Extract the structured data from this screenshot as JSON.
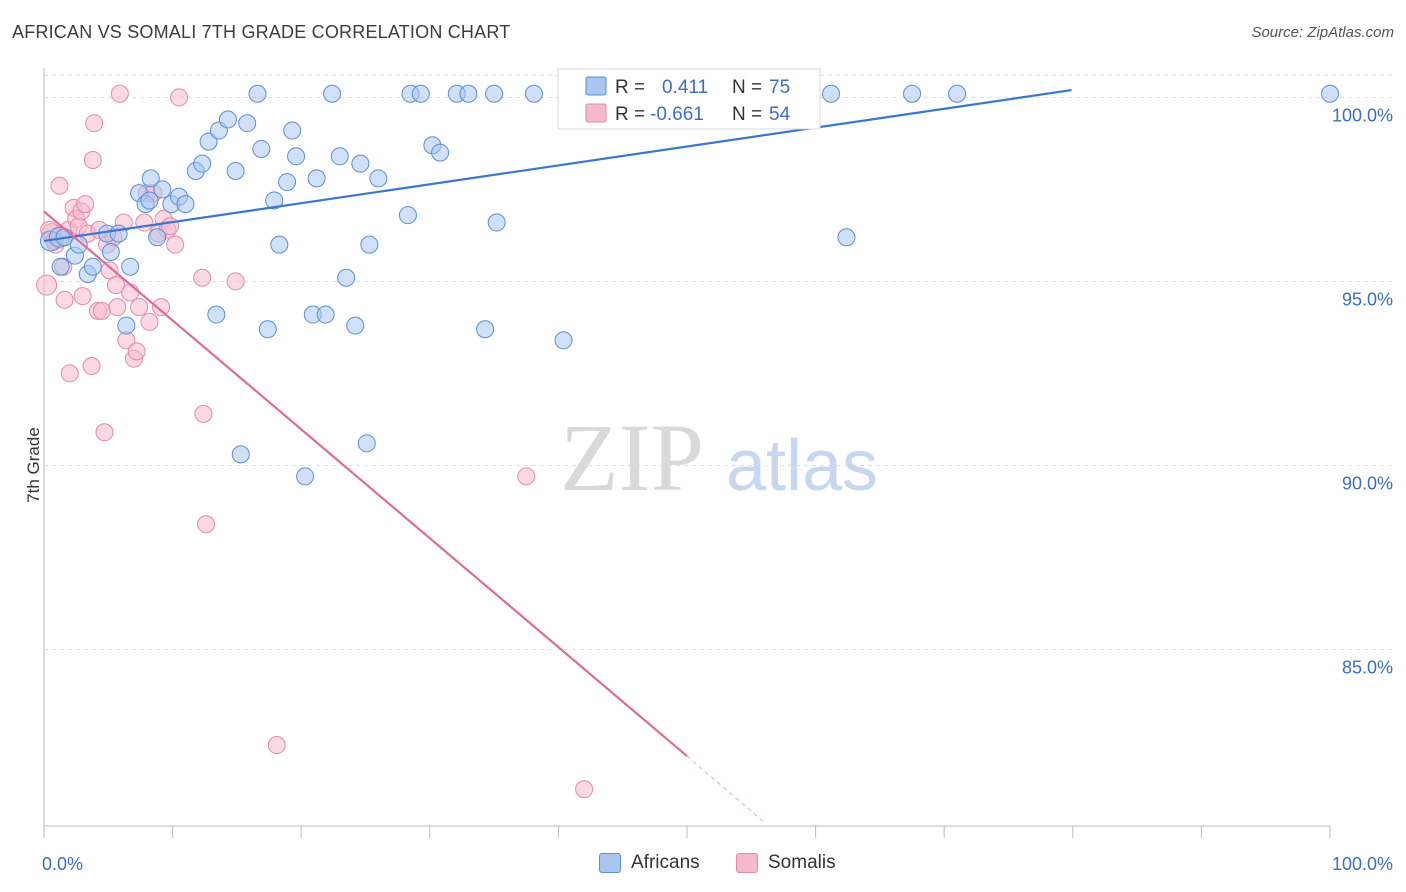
{
  "title": "AFRICAN VS SOMALI 7TH GRADE CORRELATION CHART",
  "source": "Source: ZipAtlas.com",
  "watermark": {
    "zip": "ZIP",
    "atlas": "atlas"
  },
  "colors": {
    "blue_fill": "#a9c6ee",
    "blue_stroke": "#5b8fd6",
    "blue_line": "#3a78cf",
    "pink_fill": "#f5b9cd",
    "pink_stroke": "#e48aaa",
    "pink_line": "#e06b98",
    "tick_label": "#3b6fc7",
    "grid": "#dcdcdc"
  },
  "legend": {
    "rows": [
      {
        "r_label": "R =",
        "r_value": "0.411",
        "n_label": "N =",
        "n_value": "75",
        "color": "blue"
      },
      {
        "r_label": "R =",
        "r_value": "-0.661",
        "n_label": "N =",
        "n_value": "54",
        "color": "pink"
      }
    ]
  },
  "bottom_legend": {
    "items": [
      {
        "label": "Africans",
        "color": "blue"
      },
      {
        "label": "Somalis",
        "color": "pink"
      }
    ]
  },
  "chart_data": {
    "type": "scatter",
    "title": "AFRICAN VS SOMALI 7TH GRADE CORRELATION CHART",
    "xlabel": "",
    "ylabel": "7th Grade",
    "xlim": [
      0,
      100
    ],
    "ylim": [
      80.2,
      100.8
    ],
    "x_tick_labels": [
      "0.0%",
      "100.0%"
    ],
    "y_ticks": [
      85,
      90,
      95,
      100
    ],
    "y_tick_labels": [
      "85.0%",
      "90.0%",
      "95.0%",
      "100.0%"
    ],
    "grid": true,
    "legend_position": "top-center",
    "series": [
      {
        "name": "Africans",
        "color": "#a9c6ee",
        "trend": {
          "x": [
            0,
            79.9
          ],
          "y": [
            96.1,
            100.2
          ]
        },
        "points": [
          [
            0.5,
            96.1
          ],
          [
            1.2,
            96.2
          ],
          [
            1.3,
            95.4
          ],
          [
            1.6,
            96.2
          ],
          [
            2.4,
            95.7
          ],
          [
            2.7,
            96.0
          ],
          [
            3.4,
            95.2
          ],
          [
            3.8,
            95.4
          ],
          [
            4.9,
            96.3
          ],
          [
            5.2,
            95.8
          ],
          [
            5.8,
            96.3
          ],
          [
            6.4,
            93.8
          ],
          [
            6.7,
            95.4
          ],
          [
            7.4,
            97.4
          ],
          [
            7.9,
            97.1
          ],
          [
            8.2,
            97.2
          ],
          [
            8.3,
            97.8
          ],
          [
            8.8,
            96.2
          ],
          [
            9.2,
            97.5
          ],
          [
            9.9,
            97.1
          ],
          [
            10.5,
            97.3
          ],
          [
            11.0,
            97.1
          ],
          [
            11.8,
            98.0
          ],
          [
            12.3,
            98.2
          ],
          [
            12.8,
            98.8
          ],
          [
            13.4,
            94.1
          ],
          [
            13.6,
            99.1
          ],
          [
            14.3,
            99.4
          ],
          [
            14.9,
            98.0
          ],
          [
            15.3,
            90.3
          ],
          [
            15.8,
            99.3
          ],
          [
            16.6,
            100.1
          ],
          [
            16.9,
            98.6
          ],
          [
            17.4,
            93.7
          ],
          [
            17.9,
            97.2
          ],
          [
            18.3,
            96.0
          ],
          [
            18.9,
            97.7
          ],
          [
            19.3,
            99.1
          ],
          [
            19.6,
            98.4
          ],
          [
            20.3,
            89.7
          ],
          [
            20.9,
            94.1
          ],
          [
            21.2,
            97.8
          ],
          [
            21.9,
            94.1
          ],
          [
            22.4,
            100.1
          ],
          [
            23.0,
            98.4
          ],
          [
            23.5,
            95.1
          ],
          [
            24.2,
            93.8
          ],
          [
            24.6,
            98.2
          ],
          [
            25.1,
            90.6
          ],
          [
            25.3,
            96.0
          ],
          [
            26.0,
            97.8
          ],
          [
            28.3,
            96.8
          ],
          [
            28.5,
            100.1
          ],
          [
            29.3,
            100.1
          ],
          [
            30.2,
            98.7
          ],
          [
            30.8,
            98.5
          ],
          [
            32.1,
            100.1
          ],
          [
            33.0,
            100.1
          ],
          [
            34.3,
            93.7
          ],
          [
            35.0,
            100.1
          ],
          [
            35.2,
            96.6
          ],
          [
            38.1,
            100.1
          ],
          [
            40.4,
            93.4
          ],
          [
            41.3,
            100.1
          ],
          [
            43.0,
            100.1
          ],
          [
            43.7,
            99.8
          ],
          [
            45.5,
            100.0
          ],
          [
            47.0,
            100.1
          ],
          [
            48.7,
            100.1
          ],
          [
            49.2,
            100.1
          ],
          [
            61.2,
            100.1
          ],
          [
            62.4,
            96.2
          ],
          [
            67.5,
            100.1
          ],
          [
            71.0,
            100.1
          ],
          [
            100.0,
            100.1
          ]
        ]
      },
      {
        "name": "Somalis",
        "color": "#f5b9cd",
        "trend": {
          "x": [
            0,
            50.0
          ],
          "y": [
            96.9,
            82.1
          ]
        },
        "trend_dashed": {
          "x": [
            50.0,
            56.0
          ],
          "y": [
            82.1,
            80.3
          ]
        },
        "points": [
          [
            0.2,
            94.9
          ],
          [
            0.6,
            96.3
          ],
          [
            0.9,
            96.0
          ],
          [
            1.2,
            97.6
          ],
          [
            1.5,
            95.4
          ],
          [
            1.6,
            94.5
          ],
          [
            1.9,
            96.4
          ],
          [
            2.0,
            92.5
          ],
          [
            2.3,
            97.0
          ],
          [
            2.5,
            96.7
          ],
          [
            2.7,
            96.5
          ],
          [
            2.9,
            96.9
          ],
          [
            3.0,
            94.6
          ],
          [
            3.2,
            97.1
          ],
          [
            3.4,
            96.3
          ],
          [
            3.7,
            92.7
          ],
          [
            3.8,
            98.3
          ],
          [
            3.9,
            99.3
          ],
          [
            4.2,
            94.2
          ],
          [
            4.3,
            96.4
          ],
          [
            4.5,
            94.2
          ],
          [
            4.7,
            90.9
          ],
          [
            4.9,
            96.0
          ],
          [
            5.1,
            95.3
          ],
          [
            5.4,
            96.2
          ],
          [
            5.6,
            94.9
          ],
          [
            5.7,
            94.3
          ],
          [
            5.9,
            100.1
          ],
          [
            6.2,
            96.6
          ],
          [
            6.4,
            93.4
          ],
          [
            6.7,
            94.7
          ],
          [
            7.0,
            92.9
          ],
          [
            7.2,
            93.1
          ],
          [
            7.4,
            94.3
          ],
          [
            7.8,
            96.6
          ],
          [
            8.0,
            97.4
          ],
          [
            8.2,
            93.9
          ],
          [
            8.5,
            97.4
          ],
          [
            8.9,
            96.3
          ],
          [
            9.1,
            94.3
          ],
          [
            9.3,
            96.7
          ],
          [
            9.6,
            96.4
          ],
          [
            9.8,
            96.5
          ],
          [
            10.2,
            96.0
          ],
          [
            10.5,
            100.0
          ],
          [
            12.3,
            95.1
          ],
          [
            12.4,
            91.4
          ],
          [
            12.6,
            88.4
          ],
          [
            14.9,
            95.0
          ],
          [
            18.1,
            82.4
          ],
          [
            37.5,
            89.7
          ],
          [
            42.0,
            81.2
          ],
          [
            0.4,
            96.4
          ],
          [
            0.8,
            96.1
          ]
        ]
      }
    ]
  }
}
